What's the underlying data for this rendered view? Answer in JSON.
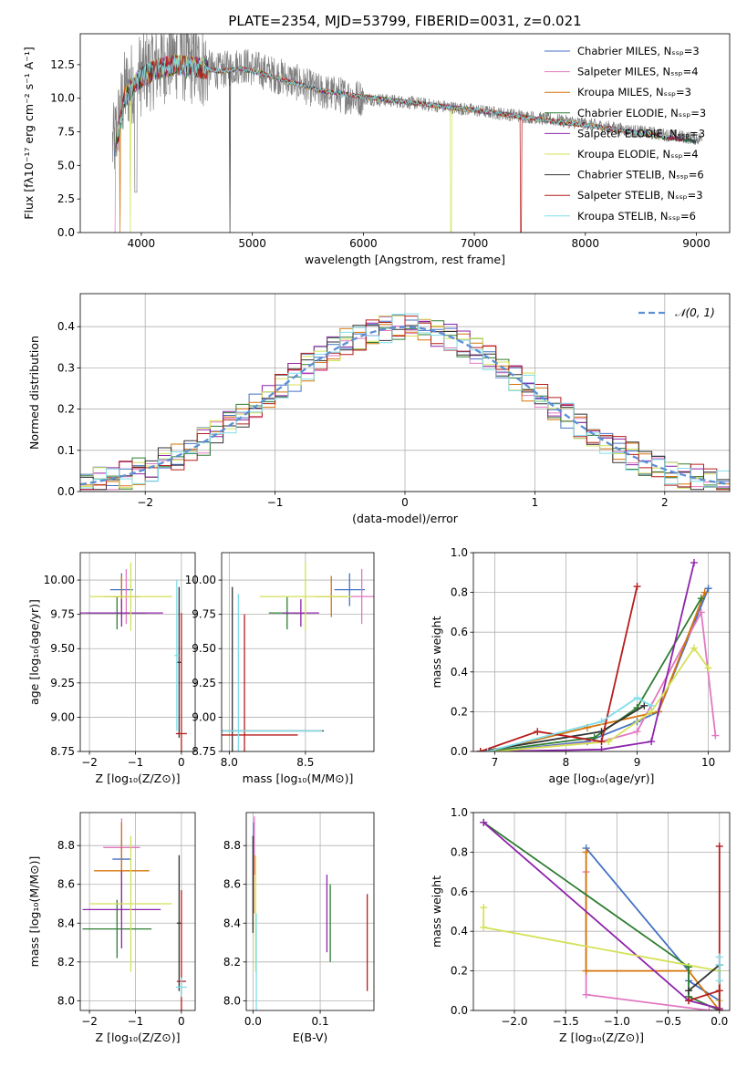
{
  "chart_data": [
    {
      "type": "line",
      "title": "PLATE=2354, MJD=53799, FIBERID=0031, z=0.021",
      "xlabel": "wavelength [Angstrom, rest frame]",
      "ylabel": "Flux [fλ10⁻¹⁷ erg cm⁻² s⁻¹ A⁻¹]",
      "xlim": [
        3450,
        9300
      ],
      "ylim": [
        0,
        14.8
      ],
      "xticks": [
        4000,
        5000,
        6000,
        7000,
        8000,
        9000
      ],
      "yticks": [
        0.0,
        2.5,
        5.0,
        7.5,
        10.0,
        12.5
      ],
      "grid": false,
      "legend": "top-right",
      "observed_spectrum": {
        "color": "#808080",
        "x": [
          3750,
          3850,
          3950,
          4050,
          4150,
          4300,
          4500,
          4700,
          4900,
          5100,
          5300,
          5600,
          6000,
          6400,
          6800,
          7200,
          7600,
          8000,
          8400,
          8800,
          9000
        ],
        "y": [
          6.5,
          10.5,
          11.5,
          12.0,
          12.5,
          13.0,
          12.5,
          12.0,
          12.5,
          12.0,
          11.5,
          10.5,
          10.0,
          9.7,
          9.3,
          8.9,
          8.5,
          8.1,
          7.6,
          7.2,
          7.0
        ]
      },
      "series": [
        {
          "name": "Chabrier MILES, Nₛₛₚ=3",
          "color": "#4472C4"
        },
        {
          "name": "Salpeter MILES, Nₛₛₚ=4",
          "color": "#E377C2"
        },
        {
          "name": "Kroupa MILES, Nₛₛₚ=3",
          "color": "#D4740A"
        },
        {
          "name": "Chabrier ELODIE, Nₛₛₚ=3",
          "color": "#2E7D32"
        },
        {
          "name": "Salpeter ELODIE, Nₛₛₚ=3",
          "color": "#8E24AA"
        },
        {
          "name": "Kroupa ELODIE, Nₛₛₚ=4",
          "color": "#D4E157"
        },
        {
          "name": "Chabrier STELIB, Nₛₛₚ=6",
          "color": "#333333"
        },
        {
          "name": "Salpeter STELIB, Nₛₛₚ=3",
          "color": "#B71C1C"
        },
        {
          "name": "Kroupa STELIB, Nₛₛₚ=6",
          "color": "#80DEEA"
        }
      ],
      "model_x": [
        3750,
        3850,
        3950,
        4050,
        4150,
        4300,
        4500,
        4700,
        4900,
        5100,
        5300,
        5600,
        6000,
        6400,
        6800,
        7200,
        7600,
        8000,
        8400,
        8800,
        9000
      ],
      "model_y": [
        5.5,
        10.0,
        11.2,
        11.8,
        12.2,
        12.5,
        12.3,
        12.0,
        12.2,
        11.8,
        11.3,
        10.6,
        10.1,
        9.7,
        9.3,
        8.9,
        8.4,
        8.0,
        7.5,
        7.0,
        6.8
      ]
    },
    {
      "type": "step",
      "xlabel": "(data-model)/error",
      "ylabel": "Normed distribution",
      "xlim": [
        -2.5,
        2.5
      ],
      "ylim": [
        0,
        0.48
      ],
      "xticks": [
        -2,
        -1,
        0,
        1,
        2
      ],
      "yticks": [
        0.0,
        0.1,
        0.2,
        0.3,
        0.4
      ],
      "grid": true,
      "legend": "top-right",
      "reference": {
        "name": "𝒩(0, 1)",
        "color": "#5B8FD6",
        "mu": 0,
        "sigma": 1
      },
      "bin_width": 0.1
    },
    {
      "type": "errorbar",
      "xlabel": "Z [log₁₀(Z/Z⊙)]",
      "ylabel": "age  [log₁₀(age/yr)]",
      "xlim": [
        -2.2,
        0.3
      ],
      "ylim": [
        8.75,
        10.2
      ],
      "xticks": [
        -2,
        -1,
        0
      ],
      "yticks": [
        8.75,
        9.0,
        9.25,
        9.5,
        9.75,
        10.0
      ],
      "grid": true,
      "points": [
        {
          "x": -1.3,
          "y": 9.93,
          "xerr": 0.25,
          "yerr": 0.12,
          "series": 0
        },
        {
          "x": -1.2,
          "y": 9.88,
          "xerr": 0.3,
          "yerr": 0.2,
          "series": 1
        },
        {
          "x": -1.3,
          "y": 9.88,
          "xerr": 0.4,
          "yerr": 0.15,
          "series": 2
        },
        {
          "x": -1.4,
          "y": 9.76,
          "xerr": 0.65,
          "yerr": 0.12,
          "series": 3
        },
        {
          "x": -1.3,
          "y": 9.76,
          "xerr": 0.9,
          "yerr": 0.1,
          "series": 4
        },
        {
          "x": -1.1,
          "y": 9.88,
          "xerr": 0.9,
          "yerr": 0.25,
          "series": 5
        },
        {
          "x": -0.05,
          "y": 9.4,
          "xerr": 0.05,
          "yerr": 0.55,
          "series": 6
        },
        {
          "x": 0.0,
          "y": 8.88,
          "xerr": 0.12,
          "yerr": 0.88,
          "series": 7
        },
        {
          "x": -0.1,
          "y": 9.45,
          "xerr": 0.05,
          "yerr": 0.55,
          "series": 8
        }
      ]
    },
    {
      "type": "errorbar",
      "xlabel": "mass [log₁₀(M/M⊙)]",
      "ylabel": "",
      "xlim": [
        7.95,
        8.95
      ],
      "ylim": [
        8.75,
        10.2
      ],
      "xticks": [
        8.0,
        8.5
      ],
      "yticks": [
        8.75,
        9.0,
        9.25,
        9.5,
        9.75,
        10.0
      ],
      "grid": true,
      "points": [
        {
          "x": 8.79,
          "y": 9.93,
          "xerr": 0.1,
          "yerr": 0.12,
          "series": 0
        },
        {
          "x": 8.87,
          "y": 9.88,
          "xerr": 0.08,
          "yerr": 0.2,
          "series": 1
        },
        {
          "x": 8.67,
          "y": 9.88,
          "xerr": 0.1,
          "yerr": 0.15,
          "series": 2
        },
        {
          "x": 8.38,
          "y": 9.76,
          "xerr": 0.12,
          "yerr": 0.12,
          "series": 3
        },
        {
          "x": 8.47,
          "y": 9.76,
          "xerr": 0.12,
          "yerr": 0.1,
          "series": 4
        },
        {
          "x": 8.5,
          "y": 9.88,
          "xerr": 0.3,
          "yerr": 0.25,
          "series": 5
        },
        {
          "x": 8.02,
          "y": 8.9,
          "xerr": 0.6,
          "yerr": 1.05,
          "series": 6
        },
        {
          "x": 8.1,
          "y": 8.87,
          "xerr": 0.35,
          "yerr": 0.88,
          "series": 7
        },
        {
          "x": 8.06,
          "y": 8.9,
          "xerr": 0.55,
          "yerr": 1.0,
          "series": 8
        }
      ]
    },
    {
      "type": "line",
      "xlabel": "age  [log₁₀(age/yr)]",
      "ylabel": "mass weight",
      "xlim": [
        6.7,
        10.3
      ],
      "ylim": [
        0,
        1.0
      ],
      "xticks": [
        7,
        8,
        9,
        10
      ],
      "yticks": [
        0.0,
        0.2,
        0.4,
        0.6,
        0.8,
        1.0
      ],
      "grid": true,
      "series": [
        {
          "series": 0,
          "x": [
            7.0,
            8.3,
            9.0,
            9.3,
            10.0
          ],
          "y": [
            0.0,
            0.05,
            0.15,
            0.2,
            0.82
          ]
        },
        {
          "series": 1,
          "x": [
            7.0,
            8.5,
            9.0,
            9.9,
            10.1
          ],
          "y": [
            0.0,
            0.05,
            0.1,
            0.7,
            0.08
          ]
        },
        {
          "series": 2,
          "x": [
            6.9,
            8.3,
            9.3,
            9.95
          ],
          "y": [
            0.0,
            0.12,
            0.2,
            0.8
          ]
        },
        {
          "series": 3,
          "x": [
            6.9,
            8.4,
            9.0,
            9.9
          ],
          "y": [
            0.0,
            0.07,
            0.22,
            0.77
          ]
        },
        {
          "series": 4,
          "x": [
            7.0,
            8.5,
            9.2,
            9.8
          ],
          "y": [
            0.0,
            0.01,
            0.05,
            0.95
          ]
        },
        {
          "series": 5,
          "x": [
            7.0,
            8.6,
            9.2,
            9.8,
            10.0
          ],
          "y": [
            0.0,
            0.05,
            0.2,
            0.52,
            0.42
          ]
        },
        {
          "series": 6,
          "x": [
            6.8,
            8.5,
            9.1
          ],
          "y": [
            0.0,
            0.1,
            0.23
          ]
        },
        {
          "series": 7,
          "x": [
            6.8,
            7.6,
            8.5,
            9.0
          ],
          "y": [
            0.0,
            0.1,
            0.05,
            0.83
          ]
        },
        {
          "series": 8,
          "x": [
            6.9,
            8.5,
            9.0,
            9.2
          ],
          "y": [
            0.0,
            0.15,
            0.27,
            0.23
          ]
        }
      ]
    },
    {
      "type": "errorbar",
      "xlabel": "Z [log₁₀(Z/Z⊙)]",
      "ylabel": "mass [log₁₀(M/M⊙)]",
      "xlim": [
        -2.2,
        0.3
      ],
      "ylim": [
        7.95,
        8.97
      ],
      "xticks": [
        -2,
        -1,
        0
      ],
      "yticks": [
        8.0,
        8.2,
        8.4,
        8.6,
        8.8
      ],
      "grid": true,
      "points": [
        {
          "x": -1.3,
          "y": 8.73,
          "xerr": 0.2,
          "yerr": 0.1,
          "series": 0
        },
        {
          "x": -1.3,
          "y": 8.79,
          "xerr": 0.4,
          "yerr": 0.15,
          "series": 1
        },
        {
          "x": -1.3,
          "y": 8.67,
          "xerr": 0.6,
          "yerr": 0.25,
          "series": 2
        },
        {
          "x": -1.4,
          "y": 8.37,
          "xerr": 0.75,
          "yerr": 0.15,
          "series": 3
        },
        {
          "x": -1.3,
          "y": 8.47,
          "xerr": 0.85,
          "yerr": 0.2,
          "series": 4
        },
        {
          "x": -1.1,
          "y": 8.5,
          "xerr": 0.9,
          "yerr": 0.35,
          "series": 5
        },
        {
          "x": -0.05,
          "y": 8.4,
          "xerr": 0.05,
          "yerr": 0.35,
          "series": 6
        },
        {
          "x": 0.0,
          "y": 8.1,
          "xerr": 0.1,
          "yerr": 0.47,
          "series": 7
        },
        {
          "x": 0.0,
          "y": 8.07,
          "xerr": 0.12,
          "yerr": 0.05,
          "series": 8
        }
      ]
    },
    {
      "type": "errorbar",
      "xlabel": "E(B-V)",
      "ylabel": "",
      "xlim": [
        -0.01,
        0.18
      ],
      "ylim": [
        7.95,
        8.97
      ],
      "xticks": [
        0.0,
        0.1
      ],
      "yticks": [
        8.0,
        8.2,
        8.4,
        8.6,
        8.8
      ],
      "grid": true,
      "points": [
        {
          "x": 0.001,
          "y": 8.8,
          "xerr": 0,
          "yerr": 0.12,
          "series": 0
        },
        {
          "x": 0.002,
          "y": 8.8,
          "xerr": 0,
          "yerr": 0.15,
          "series": 1
        },
        {
          "x": 0.001,
          "y": 8.6,
          "xerr": 0,
          "yerr": 0.15,
          "series": 2
        },
        {
          "x": 0.115,
          "y": 8.4,
          "xerr": 0,
          "yerr": 0.2,
          "series": 3
        },
        {
          "x": 0.11,
          "y": 8.45,
          "xerr": 0,
          "yerr": 0.2,
          "series": 4
        },
        {
          "x": 0.004,
          "y": 8.45,
          "xerr": 0,
          "yerr": 0.3,
          "series": 5
        },
        {
          "x": 0.0,
          "y": 8.6,
          "xerr": 0,
          "yerr": 0.25,
          "series": 6
        },
        {
          "x": 0.17,
          "y": 8.3,
          "xerr": 0,
          "yerr": 0.25,
          "series": 7
        },
        {
          "x": 0.005,
          "y": 8.2,
          "xerr": 0,
          "yerr": 0.25,
          "series": 8
        }
      ]
    },
    {
      "type": "line",
      "xlabel": "Z [log₁₀(Z/Z⊙)]",
      "ylabel": "mass weight",
      "xlim": [
        -2.4,
        0.1
      ],
      "ylim": [
        0,
        1.0
      ],
      "xticks": [
        -2.0,
        -1.5,
        -1.0,
        -0.5,
        0.0
      ],
      "yticks": [
        0.0,
        0.2,
        0.4,
        0.6,
        0.8,
        1.0
      ],
      "grid": true,
      "series": [
        {
          "series": 0,
          "x": [
            -1.3,
            -0.3,
            -0.3,
            0.0,
            0.0
          ],
          "y": [
            0.82,
            0.2,
            0.15,
            0.05,
            0.0
          ]
        },
        {
          "series": 1,
          "x": [
            -1.3,
            -1.3,
            -0.1,
            0.0
          ],
          "y": [
            0.7,
            0.08,
            0.0,
            0.0
          ]
        },
        {
          "series": 2,
          "x": [
            -1.3,
            -1.3,
            -0.3,
            0.0
          ],
          "y": [
            0.8,
            0.2,
            0.2,
            0.0
          ]
        },
        {
          "series": 3,
          "x": [
            -2.3,
            -0.3,
            -0.3,
            0.0
          ],
          "y": [
            0.95,
            0.22,
            0.07,
            0.0
          ]
        },
        {
          "series": 4,
          "x": [
            -2.3,
            -0.3,
            0.0
          ],
          "y": [
            0.95,
            0.05,
            0.01
          ]
        },
        {
          "series": 5,
          "x": [
            -2.3,
            -2.3,
            0.0,
            0.0
          ],
          "y": [
            0.52,
            0.42,
            0.2,
            0.05
          ]
        },
        {
          "series": 6,
          "x": [
            -0.3,
            0.0,
            0.0
          ],
          "y": [
            0.1,
            0.23,
            0.0
          ]
        },
        {
          "series": 7,
          "x": [
            -0.3,
            0.0,
            0.0,
            0.0
          ],
          "y": [
            0.05,
            0.1,
            0.83,
            0.0
          ]
        },
        {
          "series": 8,
          "x": [
            0.0,
            0.0,
            0.0
          ],
          "y": [
            0.27,
            0.15,
            0.23
          ]
        }
      ]
    }
  ]
}
